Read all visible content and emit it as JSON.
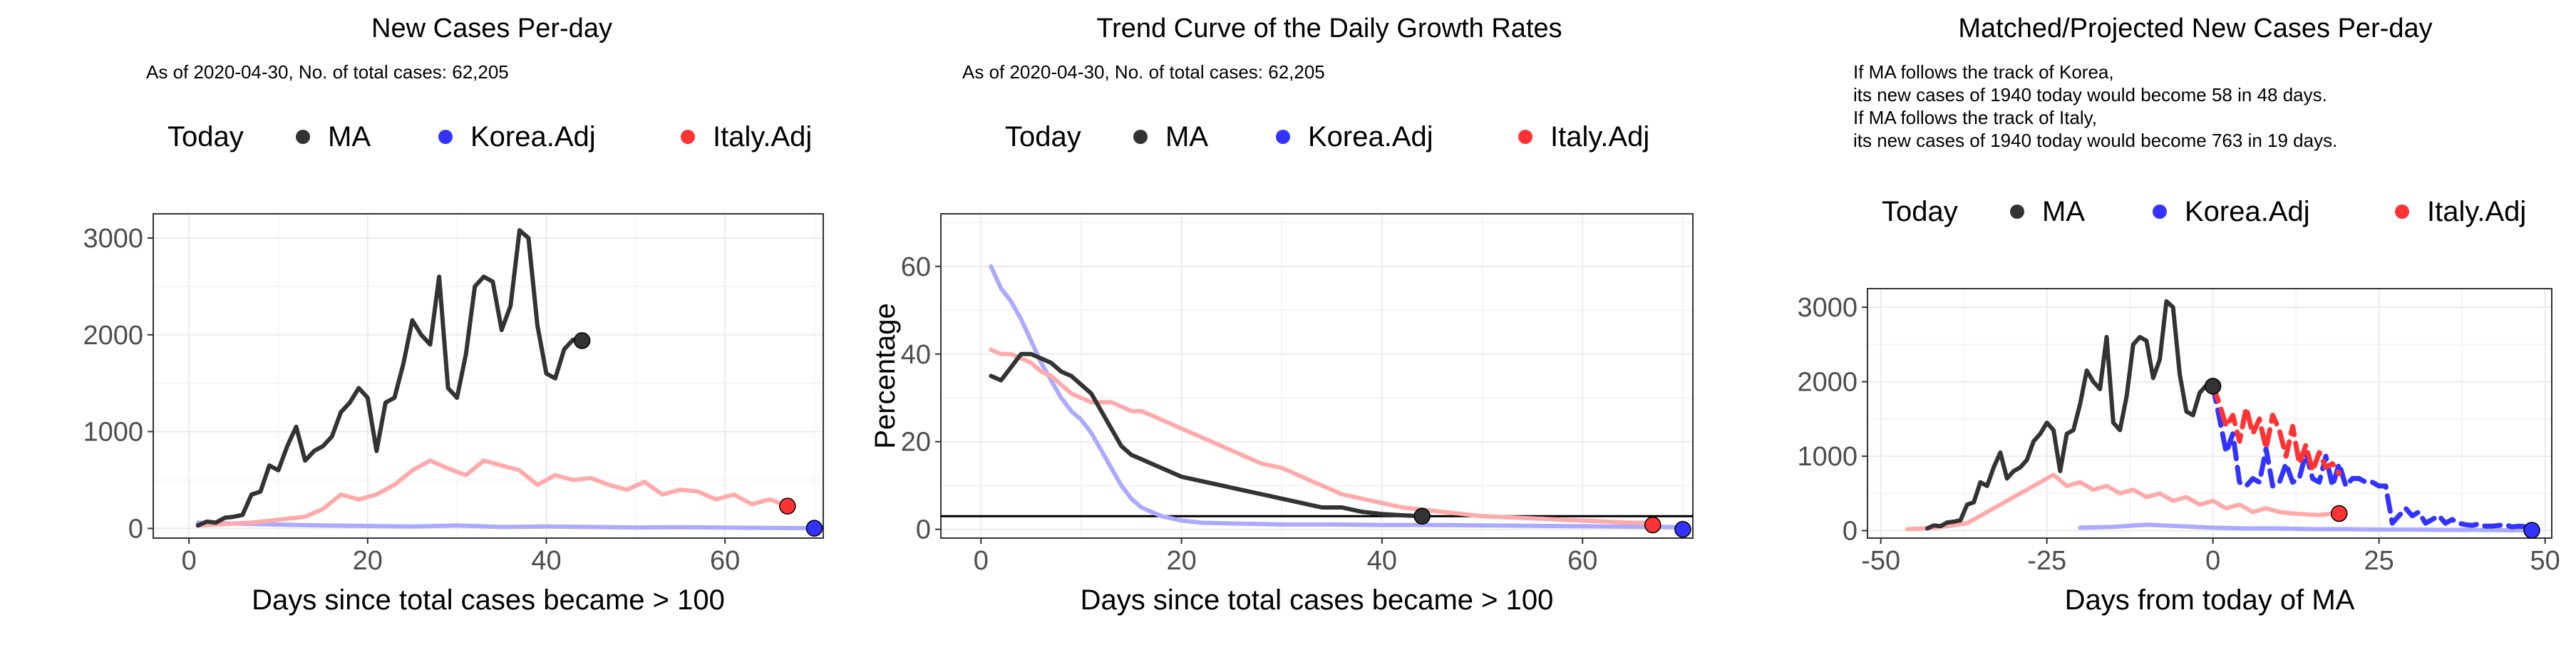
{
  "colors": {
    "today": "#000000",
    "ma": "#333333",
    "korea": "#3333ff",
    "italy": "#ff3333",
    "korea_faded": "#aaaaff",
    "italy_faded": "#ffaaaa",
    "grid": "#ebebeb",
    "axis": "#4d4d4d"
  },
  "chart_data": [
    {
      "type": "line",
      "title": "New Cases Per-day",
      "subtitle": "As of 2020-04-30, No. of total cases: 62,205",
      "legend": {
        "position": "top",
        "title": "Today",
        "entries": [
          "MA",
          "Korea.Adj",
          "Italy.Adj"
        ]
      },
      "xlabel": "Days since total cases became > 100",
      "ylabel": "",
      "xlim": [
        -4,
        71
      ],
      "ylim": [
        -100,
        3250
      ],
      "xticks": [
        0,
        20,
        40,
        60
      ],
      "yticks": [
        0,
        1000,
        2000,
        3000
      ],
      "grid": true,
      "series": [
        {
          "name": "MA",
          "x": [
            1,
            2,
            3,
            4,
            5,
            6,
            7,
            8,
            9,
            10,
            11,
            12,
            13,
            14,
            15,
            16,
            17,
            18,
            19,
            20,
            21,
            22,
            23,
            24,
            25,
            26,
            27,
            28,
            29,
            30,
            31,
            32,
            33,
            34,
            35,
            36,
            37,
            38,
            39,
            40,
            41,
            42,
            43,
            44
          ],
          "y": [
            30,
            70,
            60,
            110,
            120,
            140,
            350,
            380,
            650,
            600,
            850,
            1050,
            700,
            800,
            850,
            950,
            1200,
            1300,
            1450,
            1350,
            800,
            1300,
            1350,
            1700,
            2150,
            2000,
            1900,
            2600,
            1450,
            1350,
            1800,
            2500,
            2600,
            2550,
            2050,
            2300,
            3080,
            3000,
            2100,
            1600,
            1550,
            1850,
            1950,
            1940
          ]
        },
        {
          "name": "Korea.Adj",
          "x": [
            1,
            5,
            10,
            15,
            20,
            25,
            30,
            35,
            40,
            45,
            50,
            55,
            60,
            65,
            70
          ],
          "y": [
            60,
            50,
            40,
            30,
            25,
            20,
            30,
            15,
            20,
            15,
            10,
            12,
            8,
            5,
            2
          ]
        },
        {
          "name": "Italy.Adj",
          "x": [
            1,
            3,
            5,
            7,
            9,
            11,
            13,
            15,
            17,
            19,
            21,
            23,
            25,
            26,
            27,
            29,
            31,
            33,
            35,
            37,
            39,
            41,
            43,
            45,
            47,
            49,
            51,
            53,
            55,
            57,
            59,
            61,
            63,
            65,
            67
          ],
          "y": [
            30,
            40,
            50,
            60,
            80,
            100,
            120,
            200,
            350,
            300,
            350,
            450,
            600,
            650,
            700,
            620,
            550,
            700,
            650,
            600,
            450,
            550,
            500,
            520,
            450,
            400,
            480,
            350,
            400,
            380,
            300,
            350,
            250,
            300,
            230
          ]
        }
      ],
      "today_points": [
        {
          "name": "MA",
          "x": 44,
          "y": 1940
        },
        {
          "name": "Italy.Adj",
          "x": 67,
          "y": 230
        },
        {
          "name": "Korea.Adj",
          "x": 70,
          "y": 2
        }
      ]
    },
    {
      "type": "line",
      "title": "Trend Curve of the Daily Growth Rates",
      "subtitle": "As of 2020-04-30, No. of total cases: 62,205",
      "legend": {
        "position": "top",
        "title": "Today",
        "entries": [
          "MA",
          "Korea.Adj",
          "Italy.Adj"
        ]
      },
      "xlabel": "Days since total cases became > 100",
      "ylabel": "Percentage",
      "xlim": [
        -4,
        71
      ],
      "ylim": [
        -2,
        72
      ],
      "xticks": [
        0,
        20,
        40,
        60
      ],
      "yticks": [
        0,
        20,
        40,
        60
      ],
      "grid": true,
      "hline": 3,
      "series": [
        {
          "name": "MA",
          "x": [
            1,
            2,
            3,
            4,
            5,
            6,
            7,
            8,
            9,
            10,
            11,
            12,
            13,
            14,
            15,
            16,
            17,
            18,
            19,
            20,
            22,
            24,
            26,
            28,
            30,
            32,
            34,
            36,
            38,
            40,
            42,
            44
          ],
          "y": [
            35,
            34,
            37,
            40,
            40,
            39,
            38,
            36,
            35,
            33,
            31,
            27,
            23,
            19,
            17,
            16,
            15,
            14,
            13,
            12,
            11,
            10,
            9,
            8,
            7,
            6,
            5,
            5,
            4,
            3.5,
            3.2,
            3
          ]
        },
        {
          "name": "Korea.Adj",
          "x": [
            1,
            2,
            3,
            4,
            5,
            6,
            7,
            8,
            9,
            10,
            11,
            12,
            13,
            14,
            15,
            16,
            17,
            18,
            19,
            20,
            22,
            24,
            26,
            28,
            30,
            35,
            40,
            45,
            50,
            55,
            60,
            65,
            70
          ],
          "y": [
            60,
            55,
            52,
            48,
            43,
            38,
            34,
            30,
            27,
            25,
            22,
            18,
            14,
            10,
            7,
            5,
            4,
            3,
            2.5,
            2,
            1.5,
            1.4,
            1.3,
            1.2,
            1.1,
            1.1,
            1,
            1,
            0.9,
            0.8,
            0.7,
            0.6,
            0.5
          ]
        },
        {
          "name": "Italy.Adj",
          "x": [
            1,
            2,
            3,
            4,
            5,
            6,
            7,
            8,
            9,
            10,
            11,
            12,
            13,
            14,
            15,
            16,
            17,
            18,
            19,
            20,
            22,
            24,
            26,
            28,
            30,
            32,
            34,
            36,
            38,
            40,
            42,
            44,
            46,
            48,
            50,
            52,
            54,
            56,
            58,
            60,
            62,
            64,
            67
          ],
          "y": [
            41,
            40,
            40,
            39,
            38,
            36,
            35,
            33,
            31,
            30,
            29,
            29,
            29,
            28,
            27,
            27,
            26,
            25,
            24,
            23,
            21,
            19,
            17,
            15,
            14,
            12,
            10,
            8,
            7,
            6,
            5,
            4.5,
            4,
            3.5,
            3,
            2.8,
            2.6,
            2.4,
            2.2,
            2,
            1.8,
            1.6,
            1.4
          ]
        }
      ],
      "today_points": [
        {
          "name": "MA",
          "x": 44,
          "y": 3
        },
        {
          "name": "Italy.Adj",
          "x": 67,
          "y": 1
        },
        {
          "name": "Korea.Adj",
          "x": 70,
          "y": 0
        }
      ]
    },
    {
      "type": "line",
      "title": "Matched/Projected New Cases Per-day",
      "annotation": [
        "If MA follows the track of Korea,",
        "its new cases of 1940 today would become 58 in 48 days.",
        "If MA follows the track of Italy,",
        "its new cases of 1940 today would become 763 in 19 days."
      ],
      "legend": {
        "position": "top",
        "title": "Today",
        "entries": [
          "MA",
          "Korea.Adj",
          "Italy.Adj"
        ]
      },
      "xlabel": "Days from today of MA",
      "ylabel": "",
      "xlim": [
        -52,
        51
      ],
      "ylim": [
        -100,
        3250
      ],
      "xticks": [
        -50,
        -25,
        0,
        25,
        50
      ],
      "yticks": [
        0,
        1000,
        2000,
        3000
      ],
      "grid": true,
      "series": [
        {
          "name": "MA",
          "x": [
            -43,
            -42,
            -41,
            -40,
            -39,
            -38,
            -37,
            -36,
            -35,
            -34,
            -33,
            -32,
            -31,
            -30,
            -29,
            -28,
            -27,
            -26,
            -25,
            -24,
            -23,
            -22,
            -21,
            -20,
            -19,
            -18,
            -17,
            -16,
            -15,
            -14,
            -13,
            -12,
            -11,
            -10,
            -9,
            -8,
            -7,
            -6,
            -5,
            -4,
            -3,
            -2,
            -1,
            0
          ],
          "y": [
            30,
            70,
            60,
            110,
            120,
            140,
            350,
            380,
            650,
            600,
            850,
            1050,
            700,
            800,
            850,
            950,
            1200,
            1300,
            1450,
            1350,
            800,
            1300,
            1350,
            1700,
            2150,
            2000,
            1900,
            2600,
            1450,
            1350,
            1800,
            2500,
            2600,
            2550,
            2050,
            2300,
            3080,
            3000,
            2100,
            1600,
            1550,
            1850,
            1950,
            1940
          ]
        },
        {
          "name": "Korea.Adj",
          "x": [
            -20,
            -15,
            -10,
            -5,
            0,
            5,
            10,
            15,
            20,
            25,
            30,
            35,
            40,
            45,
            48
          ],
          "y": [
            40,
            50,
            80,
            60,
            40,
            30,
            30,
            20,
            20,
            15,
            15,
            10,
            10,
            5,
            5
          ]
        },
        {
          "name": "Italy.Adj",
          "x": [
            -46,
            -43,
            -40,
            -37,
            -34,
            -32,
            -30,
            -28,
            -26,
            -24,
            -22,
            -20,
            -18,
            -16,
            -14,
            -12,
            -10,
            -8,
            -6,
            -4,
            -2,
            0,
            2,
            4,
            6,
            8,
            10,
            12,
            14,
            16,
            18
          ],
          "y": [
            20,
            30,
            60,
            100,
            250,
            350,
            450,
            550,
            650,
            750,
            600,
            650,
            550,
            600,
            500,
            550,
            450,
            500,
            400,
            450,
            350,
            400,
            300,
            350,
            250,
            300,
            250,
            230,
            220,
            210,
            230
          ]
        },
        {
          "name": "Korea.Adj projection",
          "dashed": true,
          "x": [
            0,
            1,
            2,
            3,
            4,
            5,
            6,
            7,
            8,
            9,
            10,
            11,
            12,
            13,
            14,
            15,
            16,
            17,
            18,
            19,
            20,
            21,
            22,
            23,
            24,
            25,
            26,
            27,
            28,
            29,
            30,
            31,
            32,
            33,
            34,
            35,
            36,
            37,
            38,
            39,
            40,
            41,
            42,
            43,
            44,
            45,
            46,
            47,
            48
          ],
          "y": [
            1940,
            1500,
            1050,
            1300,
            650,
            600,
            700,
            650,
            1100,
            600,
            650,
            900,
            650,
            700,
            1050,
            700,
            650,
            1000,
            600,
            900,
            600,
            700,
            700,
            650,
            650,
            600,
            600,
            100,
            200,
            300,
            200,
            250,
            100,
            150,
            200,
            100,
            150,
            100,
            80,
            70,
            90,
            60,
            60,
            70,
            80,
            50,
            60,
            55,
            58
          ]
        },
        {
          "name": "Italy.Adj projection",
          "dashed": true,
          "x": [
            0,
            1,
            2,
            3,
            4,
            5,
            6,
            7,
            8,
            9,
            10,
            11,
            12,
            13,
            14,
            15,
            16,
            17,
            18,
            19
          ],
          "y": [
            1940,
            1700,
            1400,
            1550,
            1200,
            1650,
            1300,
            1500,
            1100,
            1550,
            1350,
            1000,
            1400,
            900,
            1150,
            800,
            1050,
            850,
            900,
            763
          ]
        }
      ],
      "today_points": [
        {
          "name": "MA",
          "x": 0,
          "y": 1940
        },
        {
          "name": "Italy.Adj",
          "x": 19,
          "y": 230
        },
        {
          "name": "Korea.Adj",
          "x": 48,
          "y": 5
        }
      ]
    }
  ]
}
